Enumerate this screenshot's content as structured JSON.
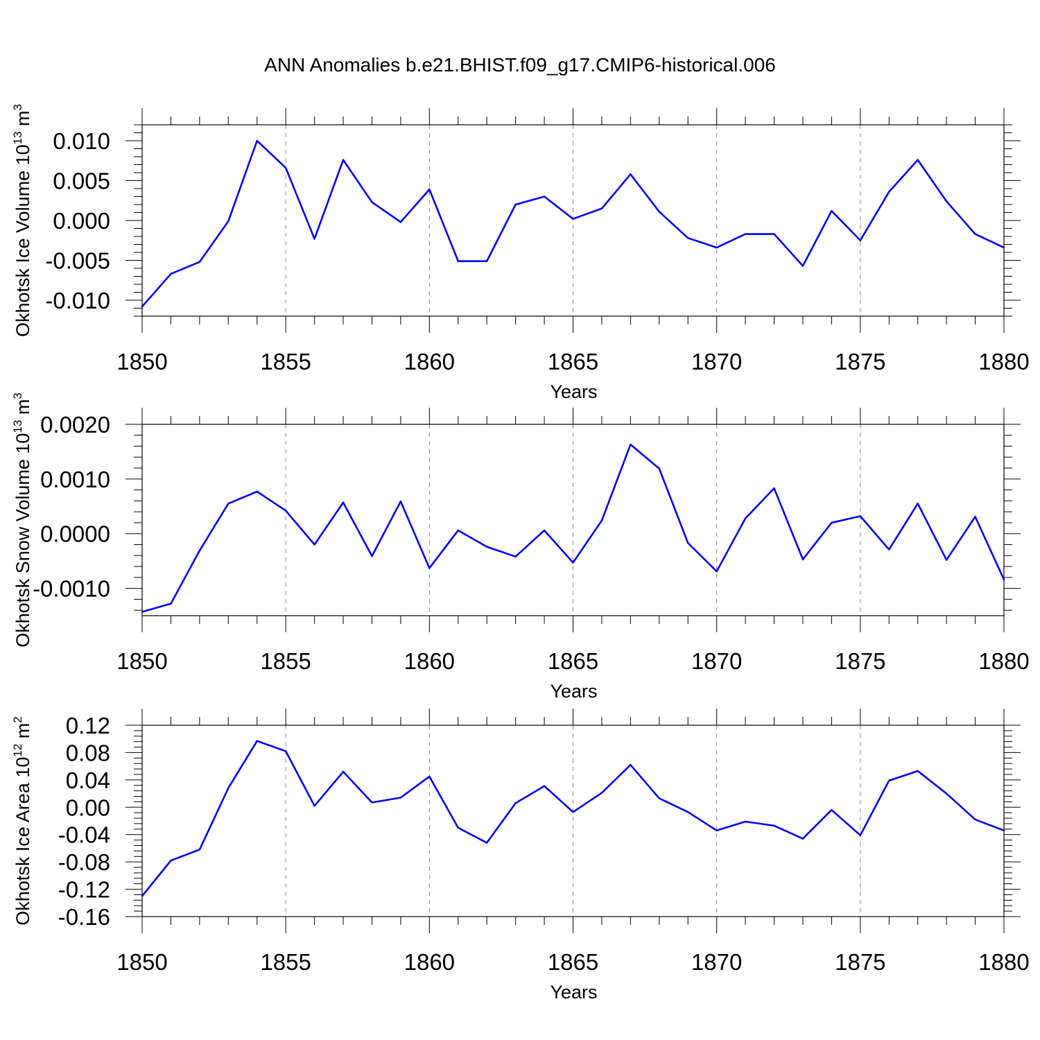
{
  "title": "ANN Anomalies b.e21.BHIST.f09_g17.CMIP6-historical.006",
  "line_color": "#0000ff",
  "chart_data": [
    {
      "type": "line",
      "xlabel": "Years",
      "ylabel": "Okhotsk Ice Volume 10",
      "ylabel_exp": "13",
      "ylabel_unit": "m",
      "ylabel_unit_exp": "3",
      "xlim": [
        1850,
        1880
      ],
      "ylim": [
        -0.012,
        0.012
      ],
      "xticks": [
        "1850",
        "1855",
        "1860",
        "1865",
        "1870",
        "1875",
        "1880"
      ],
      "yticks": [
        "0.010",
        "0.005",
        "0.000",
        "-0.005",
        "-0.010"
      ],
      "ytick_values": [
        0.01,
        0.005,
        0.0,
        -0.005,
        -0.01
      ],
      "x": [
        1850,
        1851,
        1852,
        1853,
        1854,
        1855,
        1856,
        1857,
        1858,
        1859,
        1860,
        1861,
        1862,
        1863,
        1864,
        1865,
        1866,
        1867,
        1868,
        1869,
        1870,
        1871,
        1872,
        1873,
        1874,
        1875,
        1876,
        1877,
        1878,
        1879,
        1880
      ],
      "series": [
        {
          "values": [
            -0.0108,
            -0.0067,
            -0.0052,
            -0.0001,
            0.01,
            0.0066,
            -0.0023,
            0.0076,
            0.0023,
            -0.0002,
            0.0039,
            -0.0051,
            -0.0051,
            0.002,
            0.003,
            0.0002,
            0.0015,
            0.0058,
            0.0011,
            -0.0022,
            -0.0034,
            -0.0017,
            -0.0017,
            -0.0057,
            0.0012,
            -0.0025,
            0.0036,
            0.0076,
            0.0024,
            -0.0017,
            -0.0034
          ]
        }
      ]
    },
    {
      "type": "line",
      "xlabel": "Years",
      "ylabel": "Okhotsk Snow Volume 10",
      "ylabel_exp": "13",
      "ylabel_unit": "m",
      "ylabel_unit_exp": "3",
      "xlim": [
        1850,
        1880
      ],
      "ylim": [
        -0.0015,
        0.002
      ],
      "xticks": [
        "1850",
        "1855",
        "1860",
        "1865",
        "1870",
        "1875",
        "1880"
      ],
      "yticks": [
        "0.0020",
        "0.0010",
        "0.0000",
        "-0.0010"
      ],
      "ytick_values": [
        0.002,
        0.001,
        0.0,
        -0.001
      ],
      "x": [
        1850,
        1851,
        1852,
        1853,
        1854,
        1855,
        1856,
        1857,
        1858,
        1859,
        1860,
        1861,
        1862,
        1863,
        1864,
        1865,
        1866,
        1867,
        1868,
        1869,
        1870,
        1871,
        1872,
        1873,
        1874,
        1875,
        1876,
        1877,
        1878,
        1879,
        1880
      ],
      "series": [
        {
          "values": [
            -0.00143,
            -0.00128,
            -0.00031,
            0.00055,
            0.00077,
            0.00042,
            -0.0002,
            0.00057,
            -0.00041,
            0.00059,
            -0.00063,
            6e-05,
            -0.00024,
            -0.00042,
            6e-05,
            -0.00053,
            0.00024,
            0.00163,
            0.00119,
            -0.00017,
            -0.00069,
            0.00028,
            0.00083,
            -0.00047,
            0.0002,
            0.00032,
            -0.00029,
            0.00055,
            -0.00048,
            0.00031,
            -0.00084
          ]
        }
      ]
    },
    {
      "type": "line",
      "xlabel": "Years",
      "ylabel": "Okhotsk Ice Area 10",
      "ylabel_exp": "12",
      "ylabel_unit": "m",
      "ylabel_unit_exp": "2",
      "xlim": [
        1850,
        1880
      ],
      "ylim": [
        -0.16,
        0.12
      ],
      "xticks": [
        "1850",
        "1855",
        "1860",
        "1865",
        "1870",
        "1875",
        "1880"
      ],
      "yticks": [
        "0.12",
        "0.08",
        "0.04",
        "0.00",
        "-0.04",
        "-0.08",
        "-0.12",
        "-0.16"
      ],
      "ytick_values": [
        0.12,
        0.08,
        0.04,
        0.0,
        -0.04,
        -0.08,
        -0.12,
        -0.16
      ],
      "x": [
        1850,
        1851,
        1852,
        1853,
        1854,
        1855,
        1856,
        1857,
        1858,
        1859,
        1860,
        1861,
        1862,
        1863,
        1864,
        1865,
        1866,
        1867,
        1868,
        1869,
        1870,
        1871,
        1872,
        1873,
        1874,
        1875,
        1876,
        1877,
        1878,
        1879,
        1880
      ],
      "series": [
        {
          "values": [
            -0.13,
            -0.078,
            -0.062,
            0.028,
            0.097,
            0.082,
            0.002,
            0.052,
            0.007,
            0.014,
            0.045,
            -0.03,
            -0.052,
            0.006,
            0.031,
            -0.007,
            0.021,
            0.062,
            0.013,
            -0.007,
            -0.034,
            -0.021,
            -0.027,
            -0.046,
            -0.004,
            -0.041,
            0.039,
            0.053,
            0.02,
            -0.018,
            -0.034
          ]
        }
      ]
    }
  ]
}
